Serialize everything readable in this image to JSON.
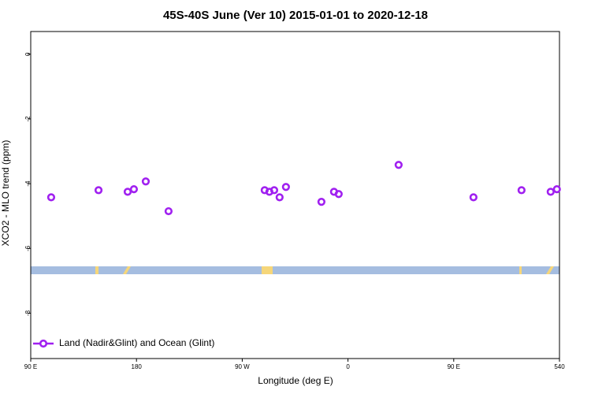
{
  "chart_data": {
    "type": "scatter",
    "title": "45S-40S June (Ver 10)   2015-01-01 to 2020-12-18",
    "x_label": "Longitude (deg E)",
    "y_label": "XCO2 - MLO trend (ppm)",
    "series": [
      {
        "name": "Land (Nadir&Glint) and Ocean (Glint)",
        "color": "#a020f0",
        "x": [
          107.4,
          147.7,
          172.5,
          177.8,
          187.9,
          207.3,
          289.1,
          293.1,
          297.2,
          301.8,
          307.2,
          337.4,
          348.1,
          352.1,
          403.1,
          466.8,
          507.7,
          532.5,
          537.8
        ],
        "values": [
          -4.42,
          -4.2,
          -4.25,
          -4.17,
          -3.93,
          -4.85,
          -4.2,
          -4.25,
          -4.2,
          -4.42,
          -4.1,
          -4.56,
          -4.25,
          -4.32,
          -3.42,
          -4.42,
          -4.2,
          -4.25,
          -4.17
        ]
      }
    ],
    "xlim": [
      90,
      540
    ],
    "xticks": [
      {
        "value": 90,
        "label": "90 E"
      },
      180,
      {
        "value": 270,
        "label": "90 W"
      },
      {
        "value": 360,
        "label": "0"
      },
      {
        "value": 450,
        "label": "90 E"
      },
      540
    ],
    "ylim": [
      -9.4,
      0.7
    ],
    "yticks": [
      0,
      -2,
      -4,
      -6,
      -8
    ],
    "legend": "bottom-left"
  }
}
